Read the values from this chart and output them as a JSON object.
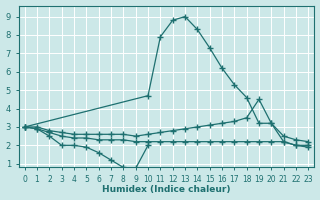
{
  "xlabel": "Humidex (Indice chaleur)",
  "xlim": [
    -0.5,
    23.5
  ],
  "ylim": [
    0.8,
    9.6
  ],
  "xticks": [
    0,
    1,
    2,
    3,
    4,
    5,
    6,
    7,
    8,
    9,
    10,
    11,
    12,
    13,
    14,
    15,
    16,
    17,
    18,
    19,
    20,
    21,
    22,
    23
  ],
  "yticks": [
    1,
    2,
    3,
    4,
    5,
    6,
    7,
    8,
    9
  ],
  "background_color": "#cce8e8",
  "grid_color": "#b0d8d8",
  "line_color": "#1e7070",
  "lines": [
    {
      "x": [
        0,
        10,
        11,
        12,
        13,
        14,
        15,
        16,
        17,
        18,
        19,
        20,
        21,
        22,
        23
      ],
      "y": [
        3.0,
        4.7,
        7.9,
        8.8,
        9.0,
        8.3,
        7.3,
        6.2,
        5.3,
        4.6,
        3.2,
        3.2,
        2.2,
        2.0,
        1.9
      ]
    },
    {
      "x": [
        0,
        1,
        2,
        3,
        4,
        5,
        6,
        7,
        8,
        9,
        10,
        11,
        12,
        13,
        14,
        15,
        16,
        17,
        18,
        19,
        20,
        21,
        22,
        23
      ],
      "y": [
        3.0,
        3.0,
        2.8,
        2.7,
        2.6,
        2.6,
        2.6,
        2.6,
        2.6,
        2.5,
        2.6,
        2.7,
        2.8,
        2.9,
        3.0,
        3.1,
        3.2,
        3.3,
        3.5,
        4.5,
        3.2,
        2.5,
        2.3,
        2.2
      ]
    },
    {
      "x": [
        0,
        1,
        2,
        3,
        4,
        5,
        6,
        7,
        8,
        9,
        10,
        11,
        12,
        13,
        14,
        15,
        16,
        17,
        18,
        19,
        20,
        21,
        22,
        23
      ],
      "y": [
        3.0,
        2.9,
        2.7,
        2.5,
        2.4,
        2.4,
        2.3,
        2.3,
        2.3,
        2.2,
        2.2,
        2.2,
        2.2,
        2.2,
        2.2,
        2.2,
        2.2,
        2.2,
        2.2,
        2.2,
        2.2,
        2.2,
        2.0,
        2.0
      ]
    },
    {
      "x": [
        0,
        1,
        2,
        3,
        4,
        5,
        6,
        7,
        8,
        9,
        10
      ],
      "y": [
        3.0,
        2.9,
        2.5,
        2.0,
        2.0,
        1.9,
        1.6,
        1.2,
        0.8,
        0.75,
        2.0
      ]
    }
  ]
}
